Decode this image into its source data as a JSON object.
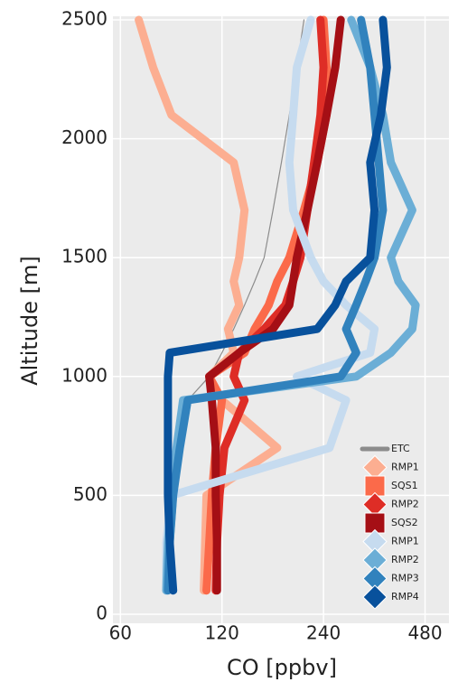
{
  "chart_data": {
    "type": "profile",
    "xlabel": "CO [ppbv]",
    "ylabel": "Altitude [m]",
    "xscale": "log",
    "xlim": [
      57,
      565
    ],
    "xticks": [
      60,
      120,
      240,
      480
    ],
    "ylim": [
      0,
      2500
    ],
    "yticks": [
      0,
      500,
      1000,
      1500,
      2000,
      2500
    ],
    "grid": true,
    "legend": "lower right",
    "y": [
      100,
      300,
      500,
      700,
      900,
      1000,
      1100,
      1200,
      1300,
      1400,
      1500,
      1700,
      1900,
      2100,
      2300,
      2500
    ],
    "series": [
      {
        "name": "ETC",
        "color": "#8c8c8c",
        "marker": "line",
        "values": [
          85,
          86,
          88,
          90,
          95,
          110,
          120,
          130,
          140,
          150,
          160,
          170,
          180,
          190,
          200,
          210
        ]
      },
      {
        "name": "RMP1",
        "color": "#fcae91",
        "marker": "D",
        "values": [
          106,
          107,
          108,
          175,
          120,
          110,
          130,
          125,
          135,
          130,
          135,
          140,
          130,
          85,
          75,
          68
        ]
      },
      {
        "name": "SQS1",
        "color": "#fb6a4a",
        "marker": "s",
        "values": [
          108,
          110,
          112,
          115,
          120,
          110,
          140,
          150,
          165,
          175,
          190,
          210,
          230,
          245,
          245,
          240
        ]
      },
      {
        "name": "RMP2",
        "color": "#de2d26",
        "marker": "D",
        "values": [
          115,
          116,
          118,
          122,
          140,
          130,
          135,
          160,
          185,
          195,
          205,
          215,
          225,
          235,
          240,
          235
        ]
      },
      {
        "name": "SQS2",
        "color": "#a50f15",
        "marker": "s",
        "values": [
          116,
          116,
          115,
          115,
          112,
          110,
          135,
          170,
          190,
          195,
          200,
          215,
          230,
          245,
          260,
          270
        ]
      },
      {
        "name": "RMP1",
        "color": "#c6dbef",
        "marker": "D",
        "values": [
          82,
          82,
          85,
          250,
          280,
          200,
          330,
          340,
          280,
          240,
          220,
          195,
          190,
          195,
          200,
          220
        ]
      },
      {
        "name": "RMP2",
        "color": "#6baed6",
        "marker": "D",
        "values": [
          82,
          83,
          85,
          88,
          92,
          300,
          380,
          440,
          450,
          400,
          380,
          440,
          380,
          360,
          330,
          290
        ]
      },
      {
        "name": "RMP3",
        "color": "#3182bd",
        "marker": "D",
        "values": [
          83,
          84,
          86,
          90,
          95,
          270,
          300,
          280,
          300,
          320,
          340,
          360,
          350,
          340,
          330,
          310
        ]
      },
      {
        "name": "RMP4",
        "color": "#08519c",
        "marker": "D",
        "values": [
          86,
          84,
          83,
          83,
          83,
          83,
          84,
          230,
          260,
          280,
          330,
          340,
          330,
          355,
          370,
          360
        ]
      }
    ]
  }
}
